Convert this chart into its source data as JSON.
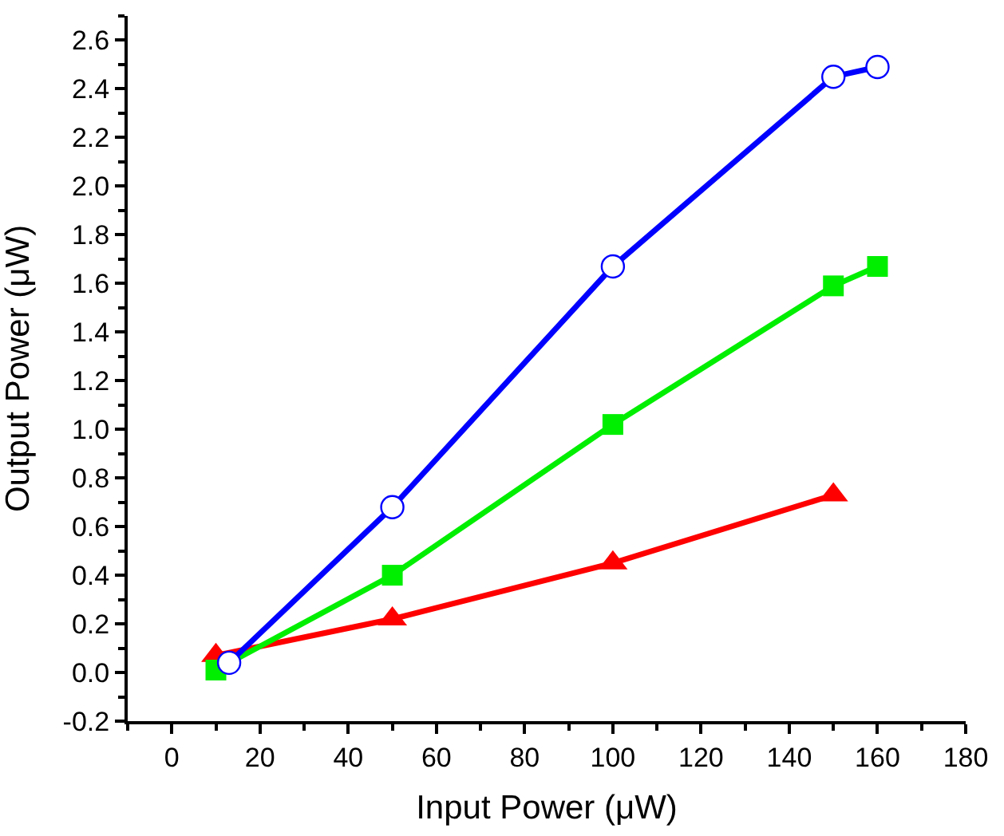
{
  "chart_data": {
    "type": "line",
    "xlabel": "Input Power (μW)",
    "ylabel": "Output Power (μW)",
    "xlim": [
      -10,
      180
    ],
    "xticks": [
      0,
      20,
      40,
      60,
      80,
      100,
      120,
      140,
      160,
      180
    ],
    "ylim": [
      -0.2,
      2.7
    ],
    "yticks": [
      {
        "value": -0.2,
        "label": "-0.2"
      },
      {
        "value": 0,
        "label": "0.0"
      },
      {
        "value": 0.2,
        "label": "0.2"
      },
      {
        "value": 0.4,
        "label": "0.4"
      },
      {
        "value": 0.6,
        "label": "0.6"
      },
      {
        "value": 0.8,
        "label": "0.8"
      },
      {
        "value": 1.0,
        "label": "1.0"
      },
      {
        "value": 1.2,
        "label": "1.2"
      },
      {
        "value": 1.4,
        "label": "1.4"
      },
      {
        "value": 1.6,
        "label": "1.6"
      },
      {
        "value": 1.8,
        "label": "1.8"
      },
      {
        "value": 2.0,
        "label": "2.0"
      },
      {
        "value": 2.2,
        "label": "2.2"
      },
      {
        "value": 2.4,
        "label": "2.4"
      },
      {
        "value": 2.6,
        "label": "2.6"
      }
    ],
    "line_style": "solid",
    "series": [
      {
        "color": "#0000ff",
        "marker": "circle",
        "x": [
          13,
          50,
          100,
          150,
          160
        ],
        "values": [
          0.04,
          0.68,
          1.67,
          2.45,
          2.49
        ]
      },
      {
        "color": "#00ee00",
        "marker": "square",
        "x": [
          10,
          50,
          100,
          150,
          160
        ],
        "values": [
          0.01,
          0.4,
          1.02,
          1.59,
          1.67
        ]
      },
      {
        "color": "#ff0000",
        "marker": "triangle",
        "x": [
          10,
          50,
          100,
          150
        ],
        "values": [
          0.07,
          0.22,
          0.45,
          0.73
        ]
      }
    ]
  }
}
